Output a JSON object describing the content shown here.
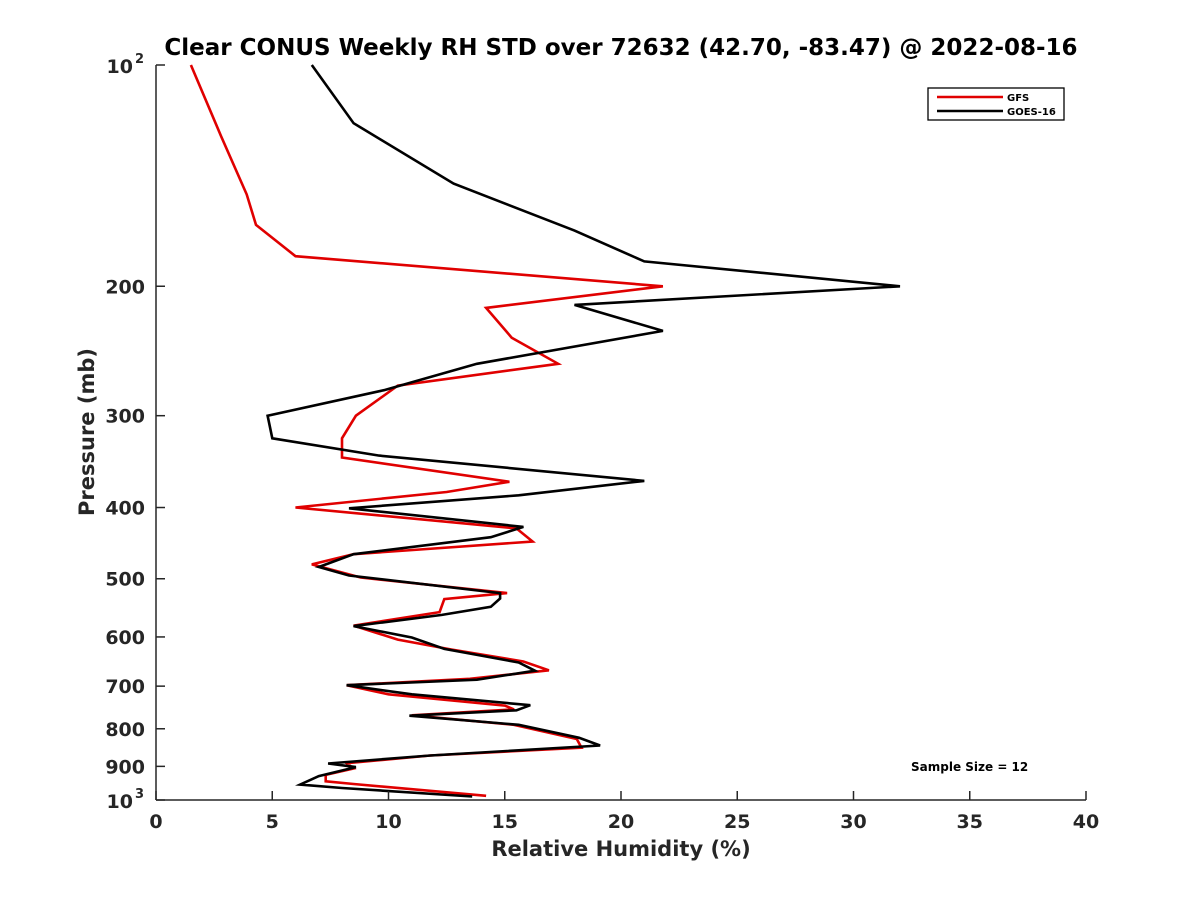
{
  "chart_data": {
    "type": "line",
    "title": "Clear CONUS Weekly RH STD over 72632 (42.70, -83.47) @ 2022-08-16",
    "xlabel": "Relative Humidity (%)",
    "ylabel": "Pressure (mb)",
    "xlim": [
      0,
      40
    ],
    "ylim": [
      100,
      1000
    ],
    "y_scale": "log",
    "y_reversed": true,
    "grid": false,
    "legend_position": "top-right",
    "annotation": "Sample Size = 12",
    "x_ticks": [
      "0",
      "5",
      "10",
      "15",
      "20",
      "25",
      "30",
      "35",
      "40"
    ],
    "y_ticks": [
      {
        "value": 100,
        "base": "10",
        "exp": "2"
      },
      {
        "value": 200,
        "label": "200"
      },
      {
        "value": 300,
        "label": "300"
      },
      {
        "value": 400,
        "label": "400"
      },
      {
        "value": 500,
        "label": "500"
      },
      {
        "value": 600,
        "label": "600"
      },
      {
        "value": 700,
        "label": "700"
      },
      {
        "value": 800,
        "label": "800"
      },
      {
        "value": 900,
        "label": "900"
      },
      {
        "value": 1000,
        "base": "10",
        "exp": "3"
      }
    ],
    "series": [
      {
        "name": "GFS",
        "color": "#e00000",
        "points": [
          [
            1.5,
            100
          ],
          [
            2.8,
            125
          ],
          [
            3.9,
            150
          ],
          [
            4.3,
            165
          ],
          [
            6.0,
            182
          ],
          [
            21.8,
            200
          ],
          [
            14.2,
            214
          ],
          [
            15.3,
            235
          ],
          [
            17.3,
            255
          ],
          [
            10.4,
            273
          ],
          [
            8.6,
            300
          ],
          [
            8.0,
            322
          ],
          [
            8.0,
            342
          ],
          [
            15.2,
            369
          ],
          [
            12.5,
            381
          ],
          [
            6.0,
            400
          ],
          [
            15.5,
            427
          ],
          [
            16.2,
            445
          ],
          [
            8.5,
            463
          ],
          [
            6.7,
            478
          ],
          [
            8.8,
            498
          ],
          [
            15.1,
            523
          ],
          [
            12.4,
            533
          ],
          [
            12.2,
            555
          ],
          [
            8.5,
            579
          ],
          [
            10.4,
            605
          ],
          [
            12.7,
            624
          ],
          [
            15.8,
            648
          ],
          [
            16.9,
            666
          ],
          [
            13.5,
            684
          ],
          [
            8.2,
            698
          ],
          [
            10.0,
            718
          ],
          [
            15.0,
            744
          ],
          [
            15.4,
            753
          ],
          [
            11.0,
            767
          ],
          [
            15.4,
            790
          ],
          [
            18.1,
            826
          ],
          [
            18.3,
            849
          ],
          [
            11.8,
            870
          ],
          [
            8.2,
            891
          ],
          [
            8.5,
            906
          ],
          [
            7.3,
            924
          ],
          [
            7.3,
            943
          ],
          [
            8.5,
            951
          ],
          [
            14.2,
            987
          ]
        ]
      },
      {
        "name": "GOES-16",
        "color": "#000000",
        "points": [
          [
            6.7,
            100
          ],
          [
            8.5,
            120
          ],
          [
            12.8,
            145
          ],
          [
            18.0,
            168
          ],
          [
            21.0,
            185
          ],
          [
            32.0,
            200
          ],
          [
            18.0,
            212
          ],
          [
            21.8,
            230
          ],
          [
            13.8,
            255
          ],
          [
            9.8,
            277
          ],
          [
            4.8,
            300
          ],
          [
            5.0,
            322
          ],
          [
            9.6,
            340
          ],
          [
            21.0,
            368
          ],
          [
            15.6,
            385
          ],
          [
            8.3,
            401
          ],
          [
            15.8,
            425
          ],
          [
            14.4,
            439
          ],
          [
            8.5,
            463
          ],
          [
            7.0,
            482
          ],
          [
            8.3,
            495
          ],
          [
            14.8,
            523
          ],
          [
            14.8,
            532
          ],
          [
            14.4,
            546
          ],
          [
            12.3,
            560
          ],
          [
            8.5,
            580
          ],
          [
            11.0,
            601
          ],
          [
            12.4,
            623
          ],
          [
            15.6,
            650
          ],
          [
            16.3,
            667
          ],
          [
            13.8,
            686
          ],
          [
            8.2,
            698
          ],
          [
            11.0,
            718
          ],
          [
            16.1,
            743
          ],
          [
            15.5,
            755
          ],
          [
            10.9,
            768
          ],
          [
            15.6,
            790
          ],
          [
            18.2,
            823
          ],
          [
            19.1,
            843
          ],
          [
            11.8,
            870
          ],
          [
            7.4,
            892
          ],
          [
            8.6,
            902
          ],
          [
            7.0,
            928
          ],
          [
            6.2,
            953
          ],
          [
            8.0,
            963
          ],
          [
            13.6,
            989
          ]
        ]
      }
    ]
  }
}
